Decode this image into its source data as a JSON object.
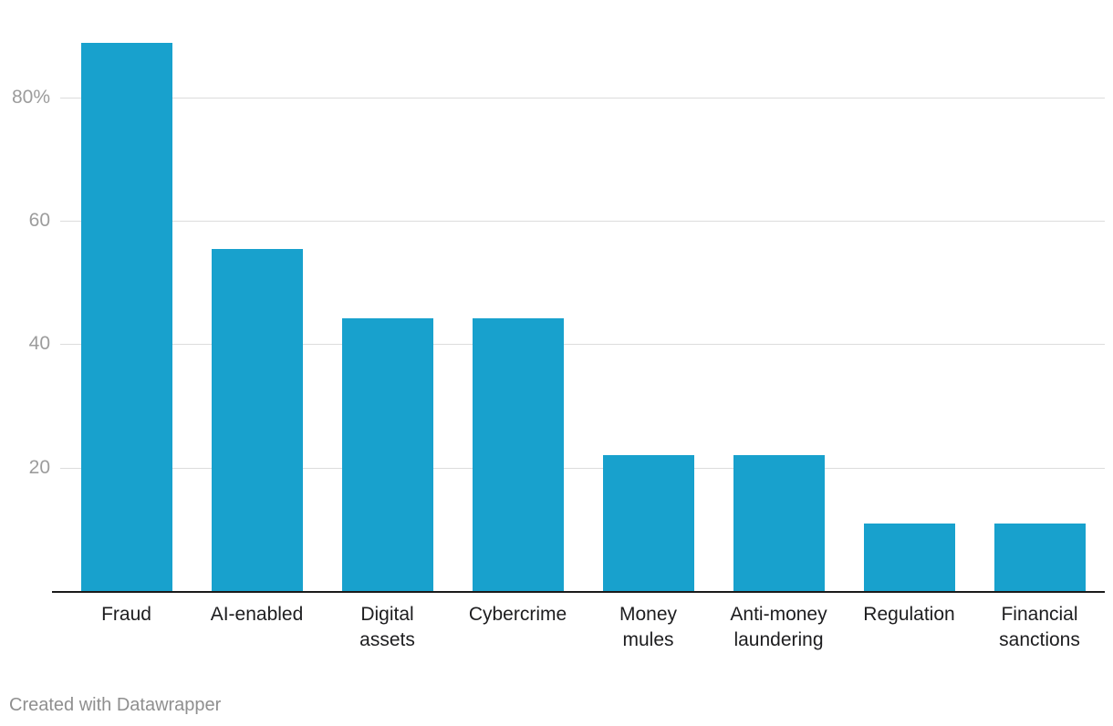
{
  "chart_data": {
    "type": "bar",
    "categories": [
      "Fraud",
      "AI-enabled",
      "Digital assets",
      "Cybercrime",
      "Money mules",
      "Anti-money laundering",
      "Regulation",
      "Financial sanctions"
    ],
    "category_lines": [
      [
        "Fraud"
      ],
      [
        "AI-enabled"
      ],
      [
        "Digital",
        "assets"
      ],
      [
        "Cybercrime"
      ],
      [
        "Money",
        "mules"
      ],
      [
        "Anti-money",
        "laundering"
      ],
      [
        "Regulation"
      ],
      [
        "Financial",
        "sanctions"
      ]
    ],
    "values": [
      88.9,
      55.6,
      44.4,
      44.4,
      22.2,
      22.2,
      11.1,
      11.1
    ],
    "title": "",
    "xlabel": "",
    "ylabel": "",
    "ylim": [
      0,
      90
    ],
    "yticks": [
      {
        "value": 20,
        "label": "20"
      },
      {
        "value": 40,
        "label": "40"
      },
      {
        "value": 60,
        "label": "60"
      },
      {
        "value": 80,
        "label": "80%"
      }
    ],
    "grid": true,
    "legend": "none",
    "bar_color": "#18A1CD"
  },
  "colors": {
    "bar": "#18A1CD",
    "gridline": "#dcdcdc",
    "axis_line": "#1a1a1a",
    "ytick_text": "#9c9c9c",
    "xlabel_text": "#1d1d1f",
    "credit_text": "#8f8f8f",
    "background": "#ffffff"
  },
  "footer": {
    "credit": "Created with Datawrapper"
  }
}
